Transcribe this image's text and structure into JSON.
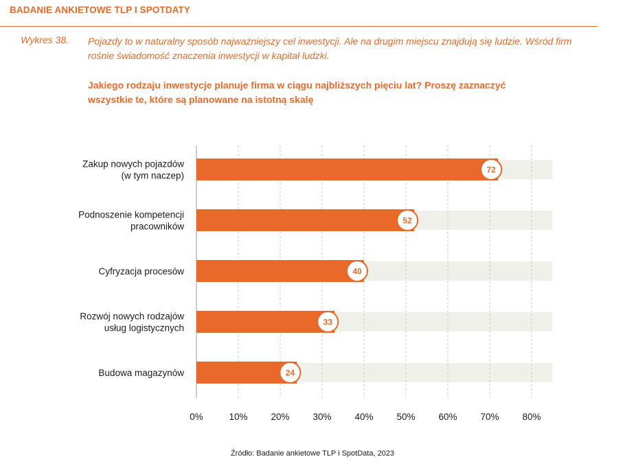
{
  "header": {
    "title": "BADANIE ANKIETOWE TLP I SPOTDATY"
  },
  "figure": {
    "number": "Wykres 38.",
    "caption": "Pojazdy to w naturalny sposób najważniejszy cel inwestycji. Ale na drugim miejscu znajdują się ludzie. Wśród firm rośnie świadomość znaczenia inwestycji w kapitał ludzki.",
    "question": "Jakiego rodzaju inwestycje planuje firma w ciągu najbliższych pięciu lat? Proszę zaznaczyć wszystkie te, które są planowane na istotną skalę"
  },
  "source": "Źródło: Badanie ankietowe TLP i SpotData, 2023",
  "colors": {
    "accent": "#e8692a",
    "track": "#f0f0ea",
    "grid": "#c8c8c8"
  },
  "chart_data": {
    "type": "bar",
    "orientation": "horizontal",
    "categories": [
      [
        "Zakup nowych pojazdów",
        "(w tym naczep)"
      ],
      [
        "Podnoszenie kompetencji",
        "pracowników"
      ],
      [
        "Cyfryzacja procesów"
      ],
      [
        "Rozwój nowych rodzajów",
        "usług logistycznych"
      ],
      [
        "Budowa magazynów"
      ]
    ],
    "values": [
      72,
      52,
      40,
      33,
      24
    ],
    "data_labels": [
      "72",
      "52",
      "40",
      "33",
      "24"
    ],
    "xlim": [
      0,
      85
    ],
    "xticks": [
      0,
      10,
      20,
      30,
      40,
      50,
      60,
      70,
      80
    ],
    "xtick_labels": [
      "0%",
      "10%",
      "20%",
      "30%",
      "40%",
      "50%",
      "60%",
      "70%",
      "80%"
    ],
    "grid": "vertical dashed",
    "legend": "none"
  }
}
